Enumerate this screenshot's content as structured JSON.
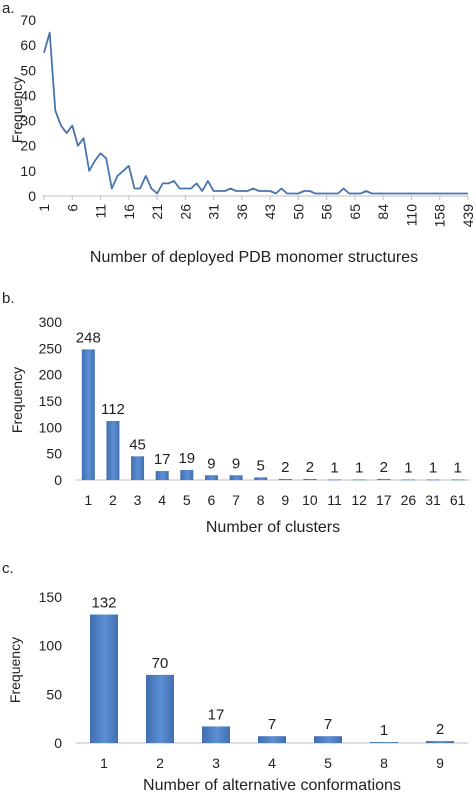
{
  "chart_data": [
    {
      "panel": "a.",
      "type": "line",
      "xlabel": "Number of deployed PDB monomer structures",
      "ylabel": "Frequency",
      "ylim": [
        0,
        70
      ],
      "yticks": [
        0,
        10,
        20,
        30,
        40,
        50,
        60,
        70
      ],
      "x_tick_labels": [
        "1",
        "6",
        "11",
        "16",
        "21",
        "26",
        "31",
        "36",
        "43",
        "50",
        "56",
        "65",
        "84",
        "110",
        "158",
        "439"
      ],
      "x_tick_every": 5,
      "values": [
        57,
        65,
        34,
        28,
        25,
        28,
        20,
        23,
        10,
        14,
        17,
        15,
        3,
        8,
        10,
        12,
        3,
        3,
        8,
        3,
        1,
        5,
        5,
        6,
        3,
        3,
        3,
        5,
        2,
        6,
        2,
        2,
        2,
        3,
        2,
        2,
        2,
        3,
        2,
        2,
        2,
        1,
        3,
        1,
        1,
        1,
        2,
        2,
        1,
        1,
        1,
        1,
        1,
        3,
        1,
        1,
        1,
        2,
        1,
        1,
        1,
        1,
        1,
        1,
        1,
        1,
        1,
        1,
        1,
        1,
        1,
        1,
        1,
        1,
        1,
        1
      ],
      "color": "#4a74ac",
      "grid": false
    },
    {
      "panel": "b.",
      "type": "bar",
      "xlabel": "Number of clusters",
      "ylabel": "Frequency",
      "ylim": [
        0,
        300
      ],
      "yticks": [
        0,
        50,
        100,
        150,
        200,
        250,
        300
      ],
      "categories": [
        "1",
        "2",
        "3",
        "4",
        "5",
        "6",
        "7",
        "8",
        "9",
        "10",
        "11",
        "12",
        "17",
        "26",
        "31",
        "61"
      ],
      "values": [
        248,
        112,
        45,
        17,
        19,
        9,
        9,
        5,
        2,
        2,
        1,
        1,
        2,
        1,
        1,
        1
      ],
      "data_labels": [
        "248",
        "112",
        "45",
        "17",
        "19",
        "9",
        "9",
        "5",
        "2",
        "2",
        "1",
        "1",
        "2",
        "1",
        "1",
        "1"
      ],
      "color": "#4a76b8",
      "grid": false
    },
    {
      "panel": "c.",
      "type": "bar",
      "xlabel": "Number of alternative conformations",
      "ylabel": "Frequency",
      "ylim": [
        0,
        150
      ],
      "yticks": [
        0,
        50,
        100,
        150
      ],
      "categories": [
        "1",
        "2",
        "3",
        "4",
        "5",
        "8",
        "9"
      ],
      "values": [
        132,
        70,
        17,
        7,
        7,
        1,
        2
      ],
      "data_labels": [
        "132",
        "70",
        "17",
        "7",
        "7",
        "1",
        "2"
      ],
      "color": "#4a76b8",
      "grid": false
    }
  ]
}
